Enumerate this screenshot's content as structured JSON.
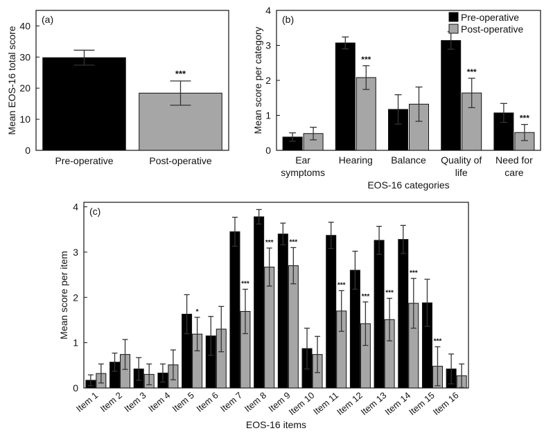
{
  "colors": {
    "pre": "#000000",
    "post": "#a6a6a6"
  },
  "legend": {
    "pre_label": "Pre-operative",
    "post_label": "Post-operative"
  },
  "chart_data": [
    {
      "id": "a",
      "type": "bar",
      "panel_label": "(a)",
      "title": "",
      "xlabel": "",
      "ylabel": "Mean EOS-16 total score",
      "ylim": [
        0,
        45
      ],
      "yticks": [
        0,
        10,
        20,
        30,
        40
      ],
      "categories": [
        "Pre-operative",
        "Post-operative"
      ],
      "values": [
        29.8,
        18.4
      ],
      "errors": [
        2.4,
        3.9
      ],
      "significance": [
        "",
        "***"
      ],
      "bar_colors": [
        "#000000",
        "#a6a6a6"
      ]
    },
    {
      "id": "b",
      "type": "bar",
      "panel_label": "(b)",
      "title": "",
      "xlabel": "EOS-16 categories",
      "ylabel": "Mean score per category",
      "ylim": [
        0,
        4
      ],
      "yticks": [
        0,
        1,
        2,
        3,
        4
      ],
      "categories": [
        [
          "Ear",
          "symptoms"
        ],
        [
          "Hearing"
        ],
        [
          "Balance"
        ],
        [
          "Quality of",
          "life"
        ],
        [
          "Need for",
          "care"
        ]
      ],
      "series": [
        {
          "name": "Pre-operative",
          "values": [
            0.38,
            3.07,
            1.17,
            3.14,
            1.07
          ],
          "errors": [
            0.12,
            0.17,
            0.42,
            0.25,
            0.27
          ],
          "significance": [
            "",
            "",
            "",
            "",
            ""
          ]
        },
        {
          "name": "Post-operative",
          "values": [
            0.48,
            2.08,
            1.32,
            1.64,
            0.51
          ],
          "errors": [
            0.18,
            0.34,
            0.49,
            0.42,
            0.23
          ],
          "significance": [
            "",
            "***",
            "",
            "***",
            "***"
          ]
        }
      ],
      "legend_position": "top-right"
    },
    {
      "id": "c",
      "type": "bar",
      "panel_label": "(c)",
      "title": "",
      "xlabel": "EOS-16 items",
      "ylabel": "Mean score per item",
      "ylim": [
        0,
        4.1
      ],
      "yticks": [
        0,
        1,
        2,
        3,
        4
      ],
      "categories": [
        "Item 1",
        "Item 2",
        "Item 3",
        "Item 4",
        "Item 5",
        "Item 6",
        "Item 7",
        "Item 8",
        "Item 9",
        "Item 10",
        "Item 11",
        "Item 12",
        "Item 13",
        "Item 14",
        "Item 15",
        "Item 16"
      ],
      "series": [
        {
          "name": "Pre-operative",
          "values": [
            0.17,
            0.57,
            0.42,
            0.33,
            1.63,
            1.15,
            3.45,
            3.78,
            3.4,
            0.87,
            3.37,
            2.6,
            3.26,
            3.28,
            1.88,
            0.42
          ],
          "errors": [
            0.12,
            0.2,
            0.25,
            0.2,
            0.43,
            0.43,
            0.32,
            0.16,
            0.24,
            0.45,
            0.29,
            0.42,
            0.31,
            0.31,
            0.52,
            0.33
          ],
          "significance": [
            "",
            "",
            "",
            "",
            "",
            "",
            "",
            "",
            "",
            "",
            "",
            "",
            "",
            "",
            "",
            ""
          ]
        },
        {
          "name": "Post-operative",
          "values": [
            0.32,
            0.74,
            0.3,
            0.51,
            1.19,
            1.3,
            1.69,
            2.67,
            2.7,
            0.74,
            1.7,
            1.42,
            1.51,
            1.87,
            0.48,
            0.27
          ],
          "errors": [
            0.21,
            0.33,
            0.23,
            0.33,
            0.37,
            0.5,
            0.49,
            0.42,
            0.4,
            0.4,
            0.45,
            0.48,
            0.47,
            0.55,
            0.43,
            0.26
          ],
          "significance": [
            "",
            "",
            "",
            "",
            "*",
            "",
            "***",
            "***",
            "***",
            "",
            "***",
            "***",
            "***",
            "***",
            "***",
            ""
          ]
        }
      ]
    }
  ]
}
